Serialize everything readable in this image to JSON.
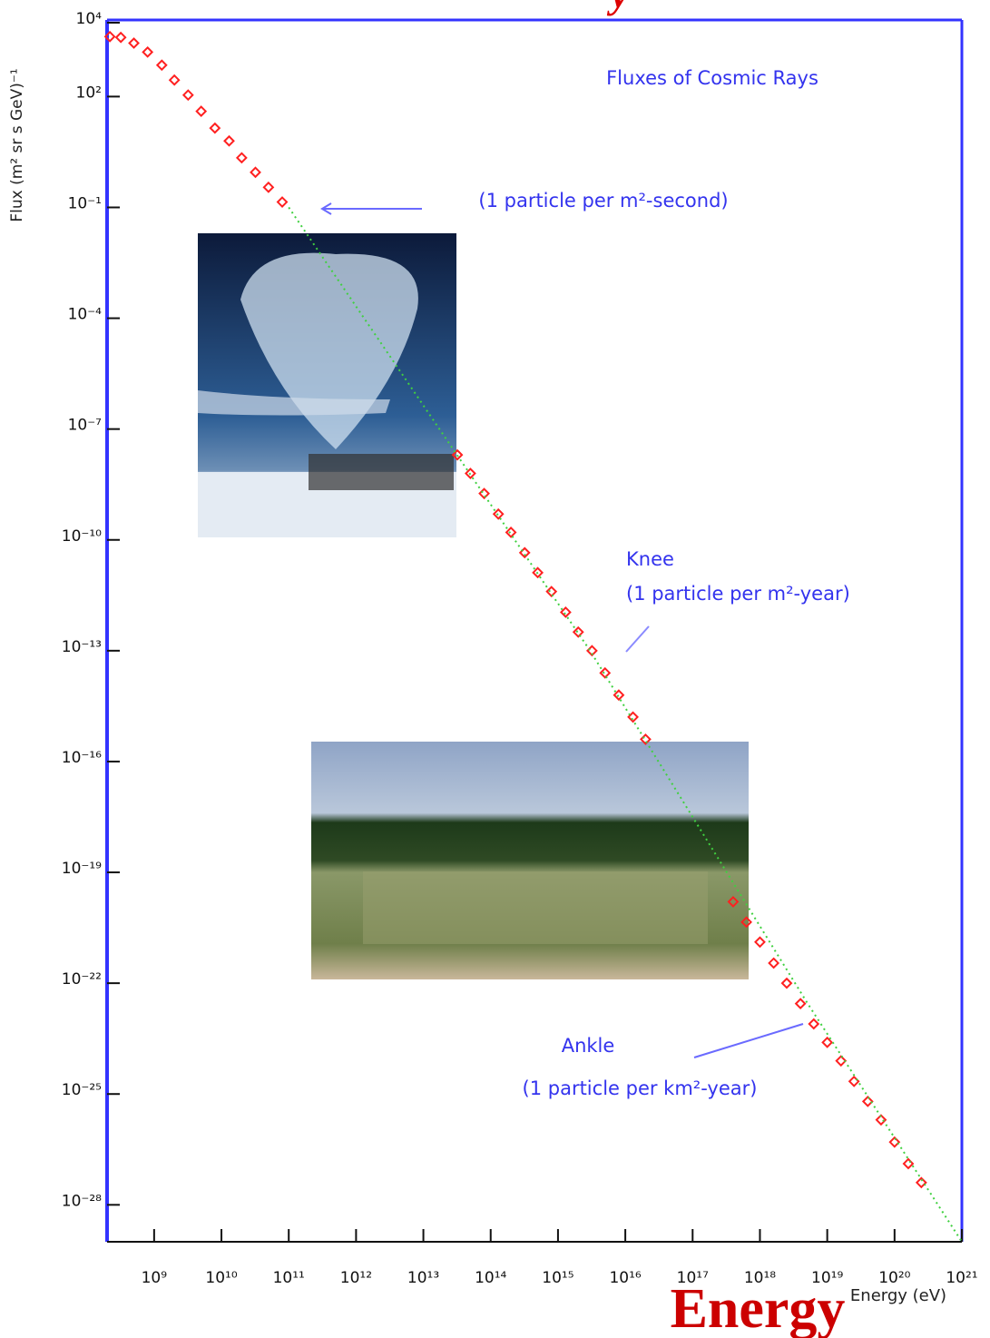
{
  "chart_data": {
    "type": "scatter",
    "title": "y",
    "overlay_title": "Energy",
    "xlabel": "Energy (eV)",
    "ylabel": "Flux (m² sr s GeV)⁻¹",
    "xscale": "log",
    "yscale": "log",
    "xlim": [
      200000000.0,
      1e+21
    ],
    "ylim": [
      1e-29,
      10000.0
    ],
    "xticks": [
      {
        "value": 1000000000.0,
        "label": "10⁹"
      },
      {
        "value": 10000000000.0,
        "label": "10¹⁰"
      },
      {
        "value": 100000000000.0,
        "label": "10¹¹"
      },
      {
        "value": 1000000000000.0,
        "label": "10¹²"
      },
      {
        "value": 10000000000000.0,
        "label": "10¹³"
      },
      {
        "value": 100000000000000.0,
        "label": "10¹⁴"
      },
      {
        "value": 1000000000000000.0,
        "label": "10¹⁵"
      },
      {
        "value": 1e+16,
        "label": "10¹⁶"
      },
      {
        "value": 1e+17,
        "label": "10¹⁷"
      },
      {
        "value": 1e+18,
        "label": "10¹⁸"
      },
      {
        "value": 1e+19,
        "label": "10¹⁹"
      },
      {
        "value": 1e+20,
        "label": "10²⁰"
      },
      {
        "value": 1e+21,
        "label": "10²¹"
      }
    ],
    "yticks": [
      {
        "value": 10000.0,
        "label": "10⁴"
      },
      {
        "value": 100.0,
        "label": "10²"
      },
      {
        "value": 0.1,
        "label": "10⁻¹"
      },
      {
        "value": 0.0001,
        "label": "10⁻⁴"
      },
      {
        "value": 1e-07,
        "label": "10⁻⁷"
      },
      {
        "value": 1e-10,
        "label": "10⁻¹⁰"
      },
      {
        "value": 1e-13,
        "label": "10⁻¹³"
      },
      {
        "value": 1e-16,
        "label": "10⁻¹⁶"
      },
      {
        "value": 1e-19,
        "label": "10⁻¹⁹"
      },
      {
        "value": 1e-22,
        "label": "10⁻²²"
      },
      {
        "value": 1e-25,
        "label": "10⁻²⁵"
      },
      {
        "value": 1e-28,
        "label": "10⁻²⁸"
      }
    ],
    "annotations": [
      "Fluxes of Cosmic Rays",
      "(1 particle per m²-second)",
      "Knee",
      "(1 particle per m²-year)",
      "Ankle",
      "(1 particle per km²-year)"
    ],
    "series": [
      {
        "marker": "diamond",
        "color": "#ff2020",
        "x": [
          220000000.0,
          320000000.0,
          500000000.0,
          800000000.0,
          1300000000.0,
          2000000000.0,
          3200000000.0,
          5000000000.0,
          8000000000.0,
          13000000000.0,
          20000000000.0,
          32000000000.0,
          50000000000.0,
          80000000000.0,
          32000000000000.0,
          50000000000000.0,
          80000000000000.0,
          130000000000000.0,
          200000000000000.0,
          320000000000000.0,
          500000000000000.0,
          800000000000000.0,
          1300000000000000.0,
          2000000000000000.0,
          3200000000000000.0,
          5000000000000000.0,
          8000000000000000.0,
          1.3e+16,
          2e+16,
          4e+17,
          6.3e+17,
          1e+18,
          1.6e+18,
          2.5e+18,
          4e+18,
          6.3e+18,
          1e+19,
          1.6e+19,
          2.5e+19,
          4e+19,
          6.3e+19,
          1e+20,
          1.6e+20,
          2.5e+20
        ],
        "values": [
          4200,
          4000,
          2800,
          1600,
          710,
          280,
          110,
          40,
          14,
          6.3,
          2.2,
          0.89,
          0.35,
          0.14,
          2e-08,
          6.3e-09,
          1.8e-09,
          5e-10,
          1.6e-10,
          4.5e-11,
          1.3e-11,
          4e-12,
          1.1e-12,
          3.2e-13,
          1e-13,
          2.5e-14,
          6.3e-15,
          1.6e-15,
          4e-16,
          1.6e-20,
          4.5e-21,
          1.3e-21,
          3.5e-22,
          1e-22,
          2.8e-23,
          7.9e-24,
          2.5e-24,
          7.9e-25,
          2.2e-25,
          6.3e-26,
          2e-26,
          5e-27,
          1.3e-27,
          4e-28
        ]
      },
      {
        "marker": "dotted-line",
        "color": "#40d040",
        "x": [
          100000000000.0,
          3000000000000000.0,
          5e+18,
          1e+21
        ],
        "values": [
          0.1,
          1e-13,
          3e-23,
          1e-29
        ]
      }
    ]
  }
}
